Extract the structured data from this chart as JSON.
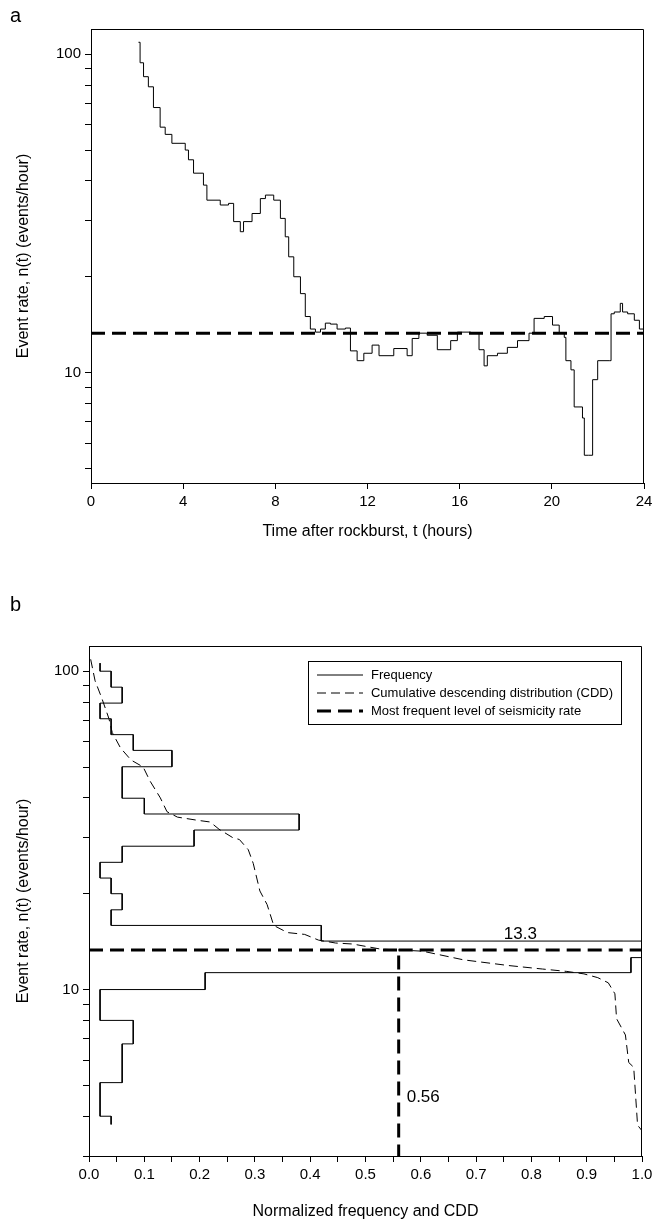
{
  "chart_data": [
    {
      "type": "step",
      "title": "a",
      "xlabel": "Time after rockburst, t (hours)",
      "ylabel": "Event rate, n(t) (events/hour)",
      "log": "y",
      "xlim": [
        0,
        24
      ],
      "xticks": [
        0,
        4,
        8,
        12,
        16,
        20,
        24
      ],
      "ylim": [
        4.5,
        120
      ],
      "yticks": [
        {
          "value": 5,
          "label": null
        },
        {
          "value": 6,
          "label": null
        },
        {
          "value": 7,
          "label": null
        },
        {
          "value": 8,
          "label": null
        },
        {
          "value": 9,
          "label": null
        },
        {
          "value": 10,
          "label": "10"
        },
        {
          "value": 20,
          "label": null
        },
        {
          "value": 30,
          "label": null
        },
        {
          "value": 40,
          "label": null
        },
        {
          "value": 50,
          "label": null
        },
        {
          "value": 60,
          "label": null
        },
        {
          "value": 70,
          "label": null
        },
        {
          "value": 80,
          "label": null
        },
        {
          "value": 90,
          "label": null
        },
        {
          "value": 100,
          "label": "100"
        }
      ],
      "ref_lines": [
        {
          "axis": "y",
          "value": 13.3,
          "color": "#000000",
          "line_style": "dashed"
        }
      ],
      "series": [
        {
          "color": "#000000",
          "x": [
            2.06,
            2.13,
            2.28,
            2.49,
            2.71,
            3.0,
            3.22,
            3.51,
            4.09,
            4.23,
            4.45,
            4.88,
            5.03,
            5.61,
            5.97,
            6.19,
            6.48,
            6.62,
            6.99,
            7.35,
            7.57,
            7.93,
            8.22,
            8.43,
            8.58,
            8.8,
            9.09,
            9.3,
            9.52,
            9.74,
            9.96,
            10.17,
            10.39,
            10.68,
            11.04,
            11.26,
            11.55,
            11.84,
            12.2,
            12.5,
            13.14,
            13.72,
            13.94,
            14.23,
            14.59,
            15.03,
            15.61,
            15.9,
            16.48,
            16.84,
            17.06,
            17.2,
            17.64,
            18.07,
            18.51,
            19.01,
            19.23,
            19.67,
            20.03,
            20.32,
            20.54,
            20.61,
            20.83,
            20.97,
            21.33,
            21.41,
            21.6,
            21.77,
            21.99,
            22.49,
            22.57,
            22.71,
            22.97,
            23.07,
            23.29,
            23.58,
            23.8,
            24.0
          ],
          "values": [
            109,
            94,
            85,
            79,
            68,
            59,
            56,
            52.5,
            50,
            46.6,
            42.3,
            38.8,
            34.8,
            33.6,
            34,
            29.8,
            27.7,
            29.8,
            31.6,
            35.2,
            36.1,
            34.8,
            30.5,
            26.7,
            23.1,
            20,
            17.7,
            15,
            13.7,
            13.4,
            13.7,
            14.3,
            14.2,
            13.7,
            13.8,
            11.7,
            10.9,
            11.5,
            12.2,
            11.3,
            11.9,
            11.3,
            12.8,
            13.3,
            13.1,
            11.8,
            12.6,
            13.4,
            13.3,
            11.8,
            10.5,
            11.3,
            11.5,
            12,
            12.6,
            13.3,
            14.8,
            15,
            14.1,
            13.3,
            12.9,
            10.9,
            10.2,
            7.8,
            7.2,
            5.5,
            5.5,
            9.5,
            10.9,
            10.9,
            15.3,
            15.5,
            16.5,
            15.5,
            15.3,
            14.6,
            13.7,
            13.6
          ]
        }
      ]
    },
    {
      "type": "line",
      "title": "b",
      "xlabel": "Normalized frequency and CDD",
      "ylabel": "Event rate, n(t) (events/hour)",
      "log": "y",
      "legend": "top right",
      "xlim": [
        0,
        1
      ],
      "xticks": [
        {
          "value": 0,
          "label": "0.0"
        },
        {
          "value": 0.05,
          "label": null
        },
        0.1,
        {
          "value": 0.15,
          "label": null
        },
        0.2,
        {
          "value": 0.25,
          "label": null
        },
        0.3,
        {
          "value": 0.35,
          "label": null
        },
        0.4,
        {
          "value": 0.45,
          "label": null
        },
        0.5,
        {
          "value": 0.55,
          "label": null
        },
        0.6,
        {
          "value": 0.65,
          "label": null
        },
        0.7,
        {
          "value": 0.75,
          "label": null
        },
        0.8,
        {
          "value": 0.85,
          "label": null
        },
        0.9,
        {
          "value": 0.95,
          "label": null
        },
        {
          "value": 1,
          "label": "1.0"
        }
      ],
      "ylim": [
        3,
        120
      ],
      "yticks": [
        {
          "value": 3,
          "label": null
        },
        {
          "value": 4,
          "label": null
        },
        {
          "value": 5,
          "label": null
        },
        {
          "value": 6,
          "label": null
        },
        {
          "value": 7,
          "label": null
        },
        {
          "value": 8,
          "label": null
        },
        {
          "value": 9,
          "label": null
        },
        {
          "value": 10,
          "label": "10"
        },
        {
          "value": 20,
          "label": null
        },
        {
          "value": 30,
          "label": null
        },
        {
          "value": 40,
          "label": null
        },
        {
          "value": 50,
          "label": null
        },
        {
          "value": 60,
          "label": null
        },
        {
          "value": 70,
          "label": null
        },
        {
          "value": 80,
          "label": null
        },
        {
          "value": 90,
          "label": null
        },
        {
          "value": 100,
          "label": "100"
        }
      ],
      "annotations": [
        {
          "text": "13.3",
          "x": 0.78,
          "y": 13.3
        },
        {
          "text": "0.56",
          "x": 0.56,
          "y": 4.6
        }
      ],
      "series": [
        {
          "name": "Frequency",
          "color": "#000000",
          "line_style": "solid",
          "x": [
            0.02,
            0.02,
            0.04,
            0.04,
            0.06,
            0.06,
            0.02,
            0.02,
            0.04,
            0.04,
            0.08,
            0.08,
            0.15,
            0.15,
            0.06,
            0.06,
            0.1,
            0.1,
            0.38,
            0.38,
            0.19,
            0.19,
            0.06,
            0.06,
            0.02,
            0.02,
            0.04,
            0.04,
            0.06,
            0.06,
            0.04,
            0.04,
            0.42,
            0.42,
            1.0,
            1.0,
            0.98,
            0.98,
            0.21,
            0.21,
            0.02,
            0.02,
            0.08,
            0.08,
            0.06,
            0.06,
            0.02,
            0.02,
            0.04,
            0.04
          ],
          "values": [
            106,
            100,
            100,
            89.1,
            89.1,
            79.4,
            79.4,
            70.9,
            70.9,
            63.2,
            63.2,
            56.4,
            56.4,
            50.1,
            50.1,
            39.9,
            39.9,
            35.6,
            35.6,
            31.7,
            31.7,
            28.2,
            28.2,
            25.1,
            25.1,
            22.4,
            22.4,
            20,
            20,
            17.8,
            17.8,
            15.9,
            15.9,
            14.2,
            14.2,
            12.6,
            12.6,
            11.3,
            11.3,
            10,
            10,
            8,
            8,
            6.75,
            6.75,
            5.1,
            5.1,
            4,
            4,
            3.77
          ]
        },
        {
          "name": "Cumulative descending distribution (CDD)",
          "color": "#000000",
          "line_style": "dashed",
          "x": [
            0.003,
            0.011,
            0.023,
            0.036,
            0.042,
            0.057,
            0.076,
            0.098,
            0.11,
            0.129,
            0.141,
            0.16,
            0.197,
            0.219,
            0.235,
            0.26,
            0.272,
            0.288,
            0.297,
            0.309,
            0.322,
            0.334,
            0.359,
            0.39,
            0.415,
            0.446,
            0.477,
            0.527,
            0.603,
            0.677,
            0.758,
            0.82,
            0.864,
            0.895,
            0.92,
            0.939,
            0.951,
            0.954,
            0.97,
            0.976,
            0.985,
            0.992,
            1.0
          ],
          "values": [
            109,
            93.3,
            82.4,
            71,
            64.2,
            57.4,
            52.6,
            50,
            45.3,
            40,
            36.2,
            34.8,
            34,
            33.6,
            31.9,
            30,
            29.6,
            27.5,
            24.9,
            20.4,
            18.5,
            15.9,
            15.1,
            14.9,
            14.3,
            14,
            13.9,
            13.4,
            13.2,
            12.4,
            11.9,
            11.6,
            11.4,
            11.2,
            10.9,
            10.5,
            9.7,
            8.1,
            7.2,
            5.9,
            5.7,
            3.75,
            3.6
          ]
        },
        {
          "name": "Most frequent level of seismicity rate",
          "color": "#000000",
          "line_style": "dashed",
          "x": [
            0,
            0.56,
            0.56,
            0.56,
            1
          ],
          "values": [
            13.3,
            13.3,
            3,
            13.3,
            13.3
          ]
        }
      ]
    }
  ]
}
